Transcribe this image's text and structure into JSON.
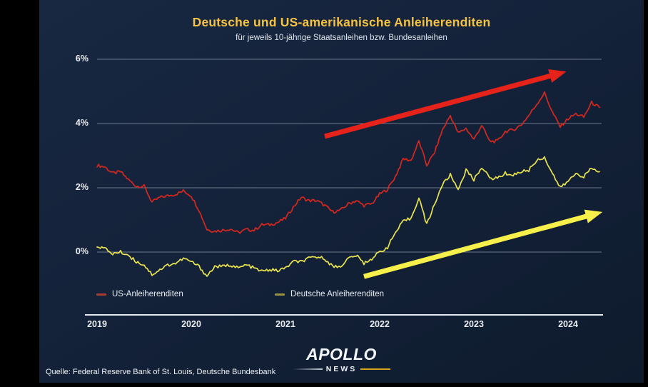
{
  "header": {
    "title": "Deutsche und US-amerikanische Anleiherenditen",
    "subtitle": "für jeweils 10-jährige Staatsanleihen bzw. Bundesanleihen"
  },
  "legend": {
    "items": [
      {
        "label": "US-Anleiherenditen",
        "swatch_color": "#a83b36"
      },
      {
        "label": "Deutsche Anleiherenditen",
        "swatch_color": "#9a9340"
      }
    ]
  },
  "footer": {
    "logo_top": "APOLLO",
    "logo_bottom": "NEWS",
    "source": "Quelle: Federal Reserve Bank of St. Louis, Deutsche Bundesbank"
  },
  "colors": {
    "background": "#14223a",
    "title_gold": "#f6c243",
    "grid": "rgba(198,208,220,0.5)",
    "axis": "#e3e9f0"
  },
  "chart_data": {
    "type": "line",
    "title": "Deutsche und US-amerikanische Anleiherenditen",
    "subtitle": "für jeweils 10-jährige Staatsanleihen bzw. Bundesanleihen",
    "x_unit": "monthly values, Jan 2019 - May 2024",
    "x_ticks": [
      "2019",
      "2020",
      "2021",
      "2022",
      "2023",
      "2024"
    ],
    "y_ticks": [
      {
        "label": "6%",
        "value": 6
      },
      {
        "label": "4%",
        "value": 4
      },
      {
        "label": "2%",
        "value": 2
      },
      {
        "label": "0%",
        "value": 0
      }
    ],
    "ylim": [
      -1.0,
      6.3
    ],
    "grid": true,
    "legend_position": "bottom",
    "series": [
      {
        "name": "US-Anleiherenditen",
        "color": "#d6281e",
        "values": [
          2.7,
          2.65,
          2.45,
          2.5,
          2.25,
          2.05,
          2.05,
          1.55,
          1.7,
          1.75,
          1.8,
          1.9,
          1.75,
          1.3,
          0.7,
          0.65,
          0.68,
          0.72,
          0.6,
          0.7,
          0.68,
          0.85,
          0.85,
          0.92,
          1.05,
          1.4,
          1.7,
          1.6,
          1.6,
          1.45,
          1.25,
          1.3,
          1.5,
          1.6,
          1.45,
          1.5,
          1.8,
          1.95,
          2.35,
          2.9,
          2.85,
          3.45,
          2.7,
          3.1,
          3.8,
          4.25,
          3.7,
          3.85,
          3.5,
          3.95,
          3.45,
          3.45,
          3.75,
          3.8,
          3.95,
          4.25,
          4.6,
          4.95,
          4.35,
          3.9,
          4.15,
          4.3,
          4.2,
          4.65,
          4.5
        ]
      },
      {
        "name": "Deutsche Anleiherenditen",
        "color": "#e9e44e",
        "values": [
          0.2,
          0.1,
          -0.05,
          0.0,
          -0.1,
          -0.3,
          -0.4,
          -0.7,
          -0.55,
          -0.4,
          -0.35,
          -0.2,
          -0.3,
          -0.45,
          -0.75,
          -0.45,
          -0.45,
          -0.4,
          -0.5,
          -0.4,
          -0.5,
          -0.6,
          -0.55,
          -0.58,
          -0.5,
          -0.3,
          -0.3,
          -0.2,
          -0.15,
          -0.2,
          -0.45,
          -0.45,
          -0.2,
          -0.1,
          -0.35,
          -0.2,
          0.0,
          0.15,
          0.6,
          0.95,
          1.05,
          1.7,
          0.85,
          1.5,
          2.1,
          2.4,
          1.95,
          2.55,
          2.25,
          2.65,
          2.3,
          2.3,
          2.45,
          2.4,
          2.5,
          2.55,
          2.85,
          2.95,
          2.45,
          2.0,
          2.2,
          2.45,
          2.35,
          2.6,
          2.5
        ]
      }
    ],
    "annotations": [
      {
        "type": "trend-arrow",
        "name": "us-trend-arrow",
        "color": "#e5231b",
        "from": {
          "x_month": 29,
          "y": 3.6
        },
        "to": {
          "x_month": 58.0,
          "y": 5.5
        }
      },
      {
        "type": "trend-arrow",
        "name": "german-trend-arrow",
        "color": "#f7f04b",
        "from": {
          "x_month": 34,
          "y": -0.76
        },
        "to": {
          "x_month": 62.6,
          "y": 1.13
        }
      }
    ]
  }
}
